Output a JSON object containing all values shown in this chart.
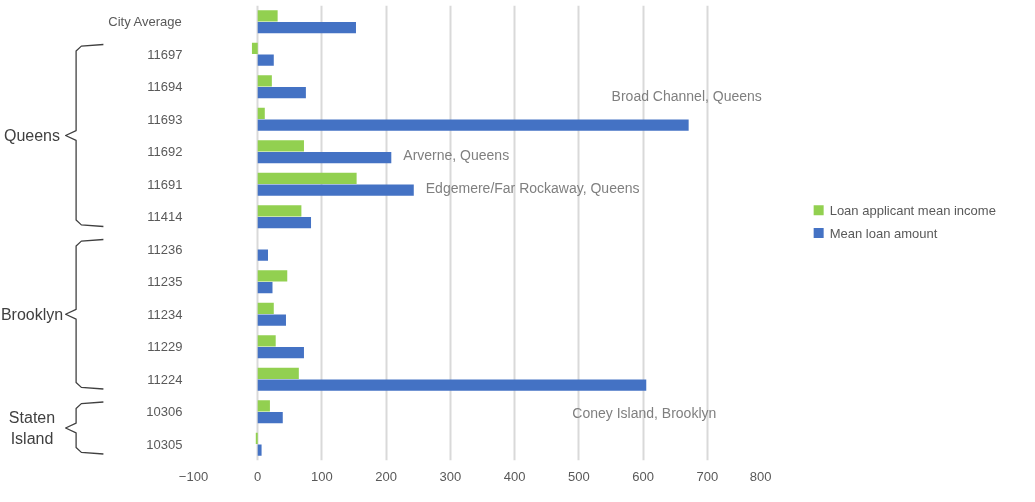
{
  "chart_data": {
    "type": "bar",
    "orientation": "horizontal",
    "categories": [
      "City Average",
      "11697",
      "11694",
      "11693",
      "11692",
      "11691",
      "11414",
      "11236",
      "11235",
      "11234",
      "11229",
      "11224",
      "10306",
      "10305"
    ],
    "series": [
      {
        "name": "Loan applicant mean income",
        "color": "#92d050",
        "values": [
          31,
          -9,
          22,
          11,
          72,
          154,
          68,
          null,
          46,
          25,
          28,
          64,
          19,
          -3
        ]
      },
      {
        "name": "Mean loan amount",
        "color": "#4472c4",
        "values": [
          153,
          25,
          75,
          671,
          208,
          243,
          83,
          16,
          23,
          44,
          72,
          605,
          39,
          6
        ]
      }
    ],
    "xlim": [
      -100,
      800
    ],
    "xticks": [
      -100,
      0,
      100,
      200,
      300,
      400,
      500,
      600,
      700,
      800
    ],
    "grid": "x",
    "legend": "right",
    "annotations": [
      "Queens",
      "Brooklyn",
      "Staten Island",
      {
        "text": "Broad Channel,  Queens",
        "x": 671,
        "y": "11693"
      },
      {
        "text": "Arverne,  Queens",
        "x": 208,
        "y": "11692"
      },
      {
        "text": "Edgemere/Far Rockaway, Queens",
        "x": 243,
        "y": "11691"
      },
      {
        "text": "Coney Island,  Brooklyn",
        "x": 605,
        "y": "11224"
      }
    ]
  }
}
